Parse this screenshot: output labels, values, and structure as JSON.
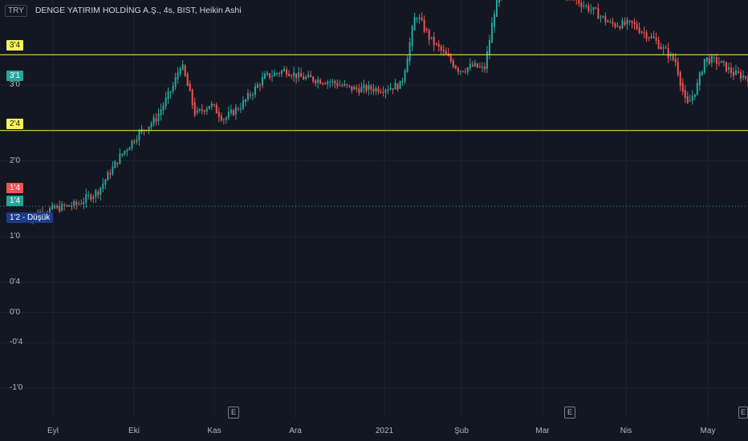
{
  "header": {
    "currency": "TRY",
    "title": "DENGE YATIRIM HOLDİNG A.Ş., 4s, BIST, Heikin Ashi"
  },
  "price_tags": {
    "top_level": "3'4",
    "last": "3'1",
    "mid_level": "2'4",
    "red": "1'4",
    "green": "1'4",
    "low_value": "1'2",
    "low_label": "Düşük"
  },
  "e_badge": "E",
  "colors": {
    "background": "#131722",
    "up": "#26a69a",
    "down": "#ef5350",
    "level_line": "#f5f557",
    "low_tag": "#1e3a8a"
  },
  "chart_data": {
    "type": "candlestick",
    "style": "Heikin Ashi",
    "y_tick_labels": [
      "3'0",
      "2'0",
      "1'0",
      "0'4",
      "0'0",
      "-0'4",
      "-1'0"
    ],
    "y_tick_values": [
      3.0,
      2.0,
      1.0,
      0.4,
      0.0,
      -0.4,
      -1.0
    ],
    "x_tick_labels": [
      "Eyl",
      "Eki",
      "Kas",
      "Ara",
      "2021",
      "Şub",
      "Mar",
      "Nis",
      "May"
    ],
    "horizontal_levels": [
      3.4,
      2.4
    ],
    "dotted_level": 1.4,
    "last_price": 3.1,
    "low": 1.2,
    "price_path": [
      {
        "t": 0.0,
        "p": 1.25
      },
      {
        "t": 0.03,
        "p": 1.35
      },
      {
        "t": 0.07,
        "p": 1.42
      },
      {
        "t": 0.1,
        "p": 1.6
      },
      {
        "t": 0.13,
        "p": 2.05
      },
      {
        "t": 0.155,
        "p": 2.35
      },
      {
        "t": 0.18,
        "p": 2.55
      },
      {
        "t": 0.205,
        "p": 3.0
      },
      {
        "t": 0.215,
        "p": 3.3
      },
      {
        "t": 0.235,
        "p": 2.6
      },
      {
        "t": 0.255,
        "p": 2.75
      },
      {
        "t": 0.275,
        "p": 2.55
      },
      {
        "t": 0.3,
        "p": 2.75
      },
      {
        "t": 0.33,
        "p": 3.1
      },
      {
        "t": 0.36,
        "p": 3.2
      },
      {
        "t": 0.38,
        "p": 3.1
      },
      {
        "t": 0.42,
        "p": 3.05
      },
      {
        "t": 0.45,
        "p": 2.95
      },
      {
        "t": 0.49,
        "p": 2.95
      },
      {
        "t": 0.52,
        "p": 3.0
      },
      {
        "t": 0.54,
        "p": 3.95
      },
      {
        "t": 0.56,
        "p": 3.6
      },
      {
        "t": 0.58,
        "p": 3.4
      },
      {
        "t": 0.6,
        "p": 3.2
      },
      {
        "t": 0.62,
        "p": 3.25
      },
      {
        "t": 0.635,
        "p": 3.2
      },
      {
        "t": 0.65,
        "p": 4.05
      },
      {
        "t": 0.7,
        "p": 4.5
      },
      {
        "t": 0.79,
        "p": 3.95
      },
      {
        "t": 0.81,
        "p": 3.8
      },
      {
        "t": 0.84,
        "p": 3.8
      },
      {
        "t": 0.87,
        "p": 3.6
      },
      {
        "t": 0.9,
        "p": 3.3
      },
      {
        "t": 0.915,
        "p": 2.7
      },
      {
        "t": 0.93,
        "p": 3.0
      },
      {
        "t": 0.94,
        "p": 3.35
      },
      {
        "t": 0.96,
        "p": 3.3
      },
      {
        "t": 0.98,
        "p": 3.15
      },
      {
        "t": 1.0,
        "p": 3.1
      }
    ]
  }
}
